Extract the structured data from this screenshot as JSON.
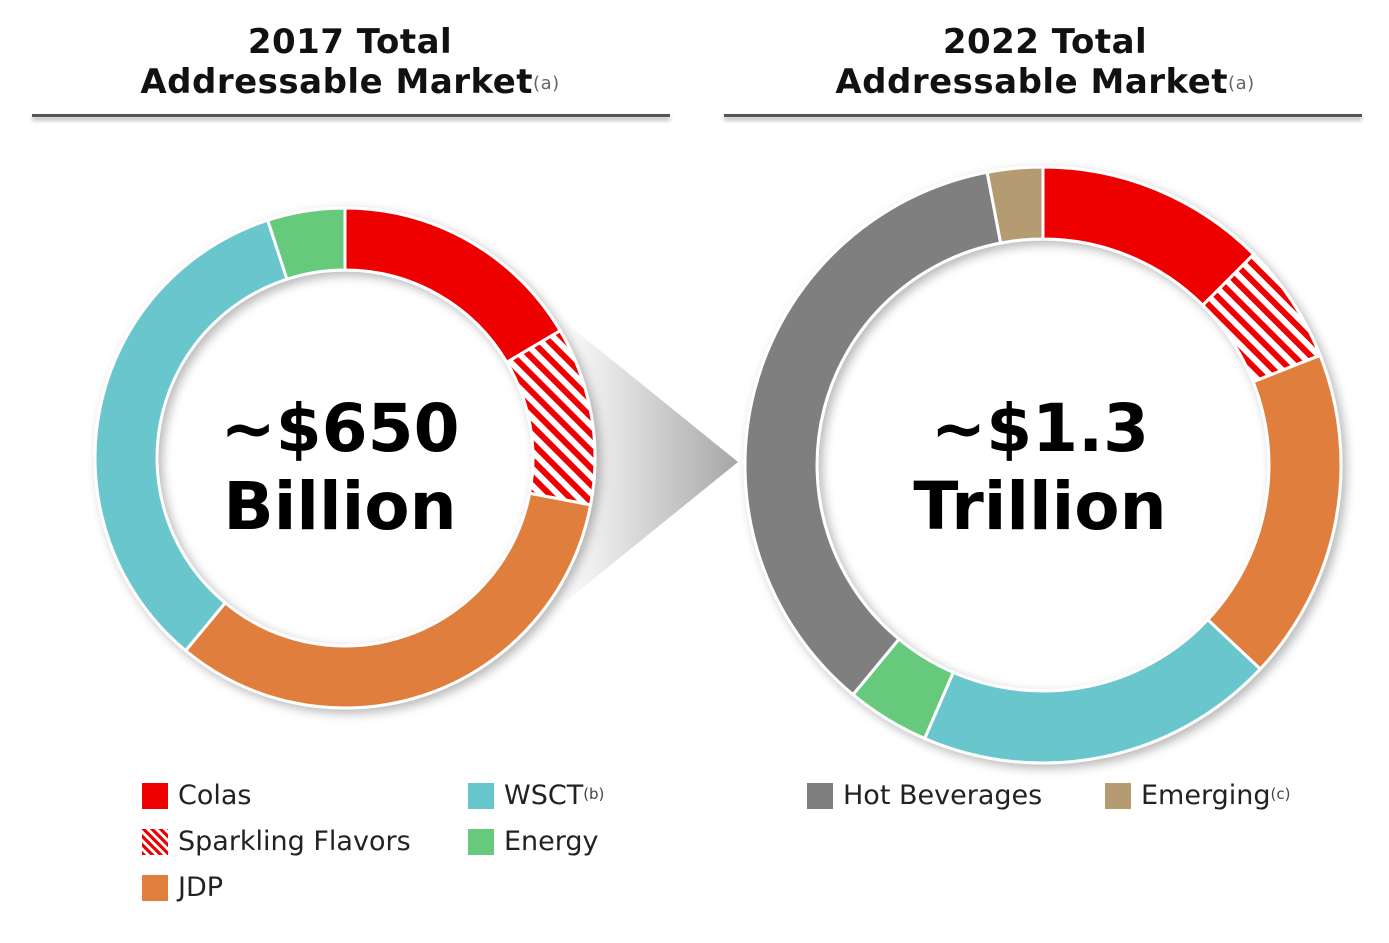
{
  "panels": [
    {
      "title_line1": "2017 Total",
      "title_line2": "Addressable Market",
      "title_note": "(a)",
      "center_line1": "~$650",
      "center_line2": "Billion"
    },
    {
      "title_line1": "2022 Total",
      "title_line2": "Addressable Market",
      "title_note": "(a)",
      "center_line1": "~$1.3",
      "center_line2": "Trillion"
    }
  ],
  "legend": [
    {
      "label": "Colas",
      "note": "",
      "color": "#ee0000",
      "pattern": "solid"
    },
    {
      "label": "Sparkling Flavors",
      "note": "",
      "color": "#ee0000",
      "pattern": "hatched"
    },
    {
      "label": "JDP",
      "note": "",
      "color": "#e07f3e",
      "pattern": "solid"
    },
    {
      "label": "WSCT",
      "note": "(b)",
      "color": "#67c6cc",
      "pattern": "solid"
    },
    {
      "label": "Energy",
      "note": "",
      "color": "#66c97b",
      "pattern": "solid"
    },
    {
      "label": "Hot Beverages",
      "note": "",
      "color": "#7f7f7f",
      "pattern": "solid"
    },
    {
      "label": "Emerging",
      "note": "(c)",
      "color": "#b49b71",
      "pattern": "solid"
    }
  ],
  "chart_data": [
    {
      "type": "pie",
      "title": "2017 Total Addressable Market",
      "total_label": "~$650 Billion",
      "categories": [
        "Colas",
        "Sparkling Flavors",
        "JDP",
        "WSCT",
        "Energy"
      ],
      "values": [
        16.5,
        11.5,
        33,
        34,
        5
      ],
      "unit": "percent of total (estimated)"
    },
    {
      "type": "pie",
      "title": "2022 Total Addressable Market",
      "total_label": "~$1.3 Trillion",
      "categories": [
        "Colas",
        "Sparkling Flavors",
        "JDP",
        "WSCT",
        "Energy",
        "Hot Beverages",
        "Emerging"
      ],
      "values": [
        12.5,
        6.5,
        18,
        19.5,
        4.5,
        36,
        3
      ],
      "unit": "percent of total (estimated)"
    }
  ]
}
